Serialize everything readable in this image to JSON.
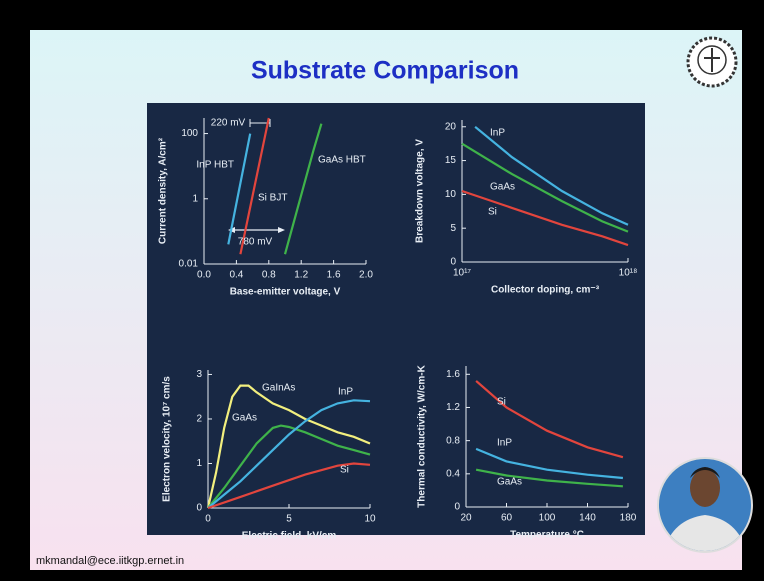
{
  "slide": {
    "title": "Substrate Comparison",
    "footer": "mkmandal@ece.iitkgp.ernet.in"
  },
  "chart_data": [
    {
      "type": "line",
      "xlabel": "Base-emitter voltage, V",
      "ylabel": "Current density, A/cm²",
      "yscale": "log",
      "xlim": [
        0,
        2
      ],
      "ylim": [
        0.01,
        300
      ],
      "xticks": [
        {
          "value": 0,
          "label": "0.0"
        },
        0.4,
        0.8,
        1.2,
        1.6,
        {
          "value": 2,
          "label": "2.0"
        }
      ],
      "yticks": [
        0.01,
        1,
        100
      ],
      "annotations": [
        "220 mV",
        "780 mV"
      ],
      "series": [
        {
          "name": "InP HBT",
          "color": "#45b3e0",
          "x": [
            0.3,
            0.57
          ],
          "values": [
            0.04,
            100
          ]
        },
        {
          "name": "Si BJT",
          "color": "#e2453d",
          "x": [
            0.45,
            0.8
          ],
          "values": [
            0.02,
            300
          ]
        },
        {
          "name": "GaAs HBT",
          "color": "#3fb34a",
          "x": [
            1.0,
            1.35,
            1.45
          ],
          "values": [
            0.02,
            30,
            200
          ]
        }
      ]
    },
    {
      "type": "line",
      "xlabel": "Collector doping, cm⁻³",
      "ylabel": "Breakdown voltage, V",
      "xscale": "log",
      "xlim": [
        100000000000000000,
        1000000000000000000
      ],
      "ylim": [
        0,
        21
      ],
      "xticks": [
        {
          "value": 100000000000000000,
          "label": "10¹⁷"
        },
        {
          "value": 1000000000000000000,
          "label": "10¹⁸"
        }
      ],
      "yticks": [
        0,
        5,
        10,
        15,
        20
      ],
      "series": [
        {
          "name": "InP",
          "color": "#45b3e0",
          "x": [
            120000000000000000,
            200000000000000000,
            400000000000000000,
            700000000000000000,
            1000000000000000000
          ],
          "values": [
            20,
            15.5,
            10.5,
            7.2,
            5.5
          ]
        },
        {
          "name": "GaAs",
          "color": "#3fb34a",
          "x": [
            100000000000000000,
            200000000000000000,
            400000000000000000,
            700000000000000000,
            1000000000000000000
          ],
          "values": [
            17.5,
            13,
            9,
            6,
            4.5
          ]
        },
        {
          "name": "Si",
          "color": "#e2453d",
          "x": [
            100000000000000000,
            200000000000000000,
            400000000000000000,
            700000000000000000,
            1000000000000000000
          ],
          "values": [
            10.5,
            8,
            5.5,
            3.8,
            2.5
          ]
        }
      ]
    },
    {
      "type": "line",
      "xlabel": "Electric field, kV/cm",
      "ylabel": "Electron velocity, 10⁷ cm/s",
      "xlim": [
        0,
        10
      ],
      "ylim": [
        0,
        3.1
      ],
      "xticks": [
        0,
        5,
        10
      ],
      "yticks": [
        0,
        1,
        2,
        3
      ],
      "series": [
        {
          "name": "GaInAs",
          "color": "#f2ef7e",
          "x": [
            0,
            0.5,
            1,
            1.5,
            2,
            2.5,
            3,
            4,
            5,
            6,
            7,
            8,
            9,
            10
          ],
          "values": [
            0,
            0.8,
            1.8,
            2.5,
            2.75,
            2.75,
            2.6,
            2.35,
            2.2,
            2.0,
            1.85,
            1.7,
            1.6,
            1.45
          ]
        },
        {
          "name": "GaAs",
          "color": "#3fb34a",
          "x": [
            0,
            1,
            2,
            3,
            4,
            4.5,
            5,
            6,
            7,
            8,
            9,
            10
          ],
          "values": [
            0,
            0.45,
            0.95,
            1.45,
            1.8,
            1.85,
            1.82,
            1.7,
            1.55,
            1.4,
            1.3,
            1.2
          ]
        },
        {
          "name": "InP",
          "color": "#45b3e0",
          "x": [
            0,
            1,
            2,
            3,
            4,
            5,
            6,
            7,
            8,
            9,
            10
          ],
          "values": [
            0,
            0.3,
            0.6,
            0.95,
            1.3,
            1.65,
            1.95,
            2.2,
            2.35,
            2.42,
            2.4
          ]
        },
        {
          "name": "Si",
          "color": "#e2453d",
          "x": [
            0,
            2,
            4,
            6,
            8,
            9,
            10
          ],
          "values": [
            0,
            0.25,
            0.5,
            0.75,
            0.95,
            1.0,
            0.97
          ]
        }
      ]
    },
    {
      "type": "line",
      "xlabel": "Temperature,°C",
      "ylabel": "Thermal conductivity, W/cm-K",
      "xlim": [
        20,
        180
      ],
      "ylim": [
        0,
        1.7
      ],
      "xticks": [
        20,
        60,
        100,
        140,
        180
      ],
      "yticks": [
        0,
        0.4,
        0.8,
        1.2,
        1.6
      ],
      "series": [
        {
          "name": "Si",
          "color": "#e2453d",
          "x": [
            30,
            60,
            100,
            140,
            175
          ],
          "values": [
            1.52,
            1.2,
            0.92,
            0.72,
            0.6
          ]
        },
        {
          "name": "InP",
          "color": "#45b3e0",
          "x": [
            30,
            60,
            100,
            140,
            175
          ],
          "values": [
            0.7,
            0.55,
            0.45,
            0.39,
            0.35
          ]
        },
        {
          "name": "GaAs",
          "color": "#3fb34a",
          "x": [
            30,
            60,
            100,
            140,
            175
          ],
          "values": [
            0.45,
            0.38,
            0.32,
            0.28,
            0.25
          ]
        }
      ]
    }
  ]
}
